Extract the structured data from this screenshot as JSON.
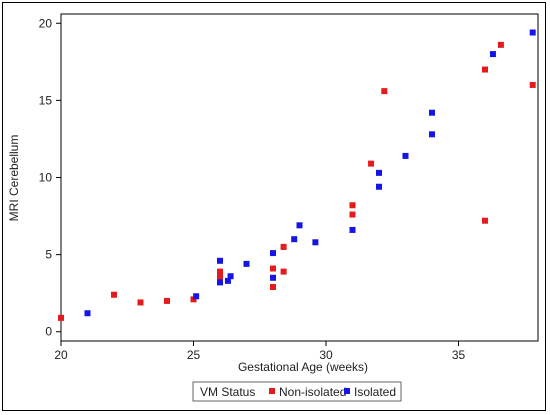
{
  "chart_data": {
    "type": "scatter",
    "xlabel": "Gestational Age (weeks)",
    "ylabel": "MRI Cerebellum",
    "xlim": [
      20,
      38
    ],
    "ylim": [
      -0.6,
      20.6
    ],
    "xticks": [
      20,
      25,
      30,
      35
    ],
    "yticks": [
      0,
      5,
      10,
      15,
      20
    ],
    "grid": false,
    "legend": {
      "title": "VM Status",
      "position": "bottom-center",
      "entries": [
        "Non-isolated",
        "Isolated"
      ]
    },
    "series": [
      {
        "name": "Non-isolated",
        "color": "#e41a1c",
        "points": [
          [
            20.0,
            0.9
          ],
          [
            22.0,
            2.4
          ],
          [
            23.0,
            1.9
          ],
          [
            24.0,
            2.0
          ],
          [
            25.0,
            2.1
          ],
          [
            26.0,
            3.6
          ],
          [
            26.0,
            3.9
          ],
          [
            26.0,
            3.3
          ],
          [
            28.0,
            2.9
          ],
          [
            28.0,
            4.1
          ],
          [
            28.4,
            3.9
          ],
          [
            28.4,
            5.5
          ],
          [
            31.0,
            7.6
          ],
          [
            31.0,
            8.2
          ],
          [
            31.7,
            10.9
          ],
          [
            32.2,
            15.6
          ],
          [
            36.0,
            17.0
          ],
          [
            36.0,
            7.2
          ],
          [
            36.6,
            18.6
          ],
          [
            37.8,
            16.0
          ]
        ]
      },
      {
        "name": "Isolated",
        "color": "#1515e8",
        "points": [
          [
            21.0,
            1.2
          ],
          [
            25.1,
            2.3
          ],
          [
            26.0,
            3.2
          ],
          [
            26.0,
            4.6
          ],
          [
            26.3,
            3.3
          ],
          [
            26.4,
            3.6
          ],
          [
            27.0,
            4.4
          ],
          [
            28.0,
            3.5
          ],
          [
            28.0,
            5.1
          ],
          [
            28.8,
            6.0
          ],
          [
            29.0,
            6.9
          ],
          [
            29.6,
            5.8
          ],
          [
            31.0,
            6.6
          ],
          [
            32.0,
            9.4
          ],
          [
            32.0,
            10.3
          ],
          [
            33.0,
            11.4
          ],
          [
            34.0,
            12.8
          ],
          [
            34.0,
            14.2
          ],
          [
            36.3,
            18.0
          ],
          [
            37.8,
            19.4
          ]
        ]
      }
    ]
  }
}
